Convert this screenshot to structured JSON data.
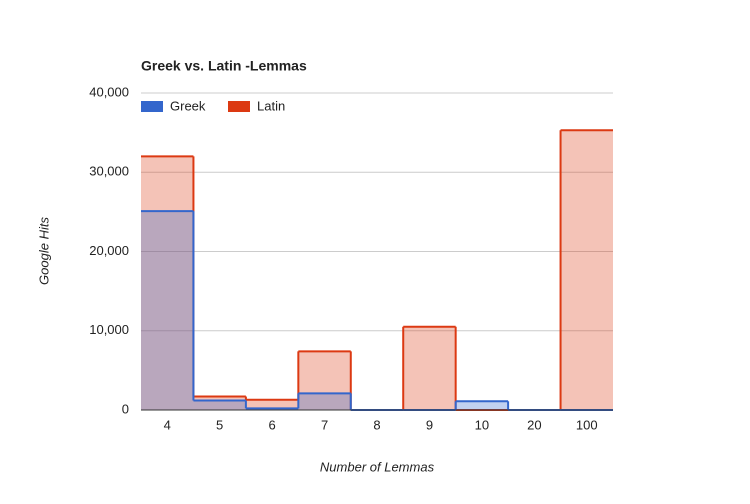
{
  "chart_data": {
    "type": "stepped-area",
    "title": "Greek vs. Latin -Lemmas",
    "x_label": "Number of Lemmas",
    "y_label": "Google Hits",
    "categories": [
      "4",
      "5",
      "6",
      "7",
      "8",
      "9",
      "10",
      "20",
      "100"
    ],
    "series": [
      {
        "name": "Greek",
        "color": "#3366cc",
        "values": [
          25100,
          1200,
          200,
          2100,
          0,
          0,
          1100,
          0,
          0
        ]
      },
      {
        "name": "Latin",
        "color": "#dc3912",
        "values": [
          32000,
          1700,
          1300,
          7400,
          0,
          10500,
          0,
          0,
          35300
        ]
      }
    ],
    "ylim": [
      0,
      40000
    ],
    "yticks": [
      0,
      {
        "value": 10000,
        "label": "10,000"
      },
      {
        "value": 20000,
        "label": "20,000"
      },
      {
        "value": 30000,
        "label": "30,000"
      },
      {
        "value": 40000,
        "label": "40,000"
      }
    ],
    "grid": true
  }
}
